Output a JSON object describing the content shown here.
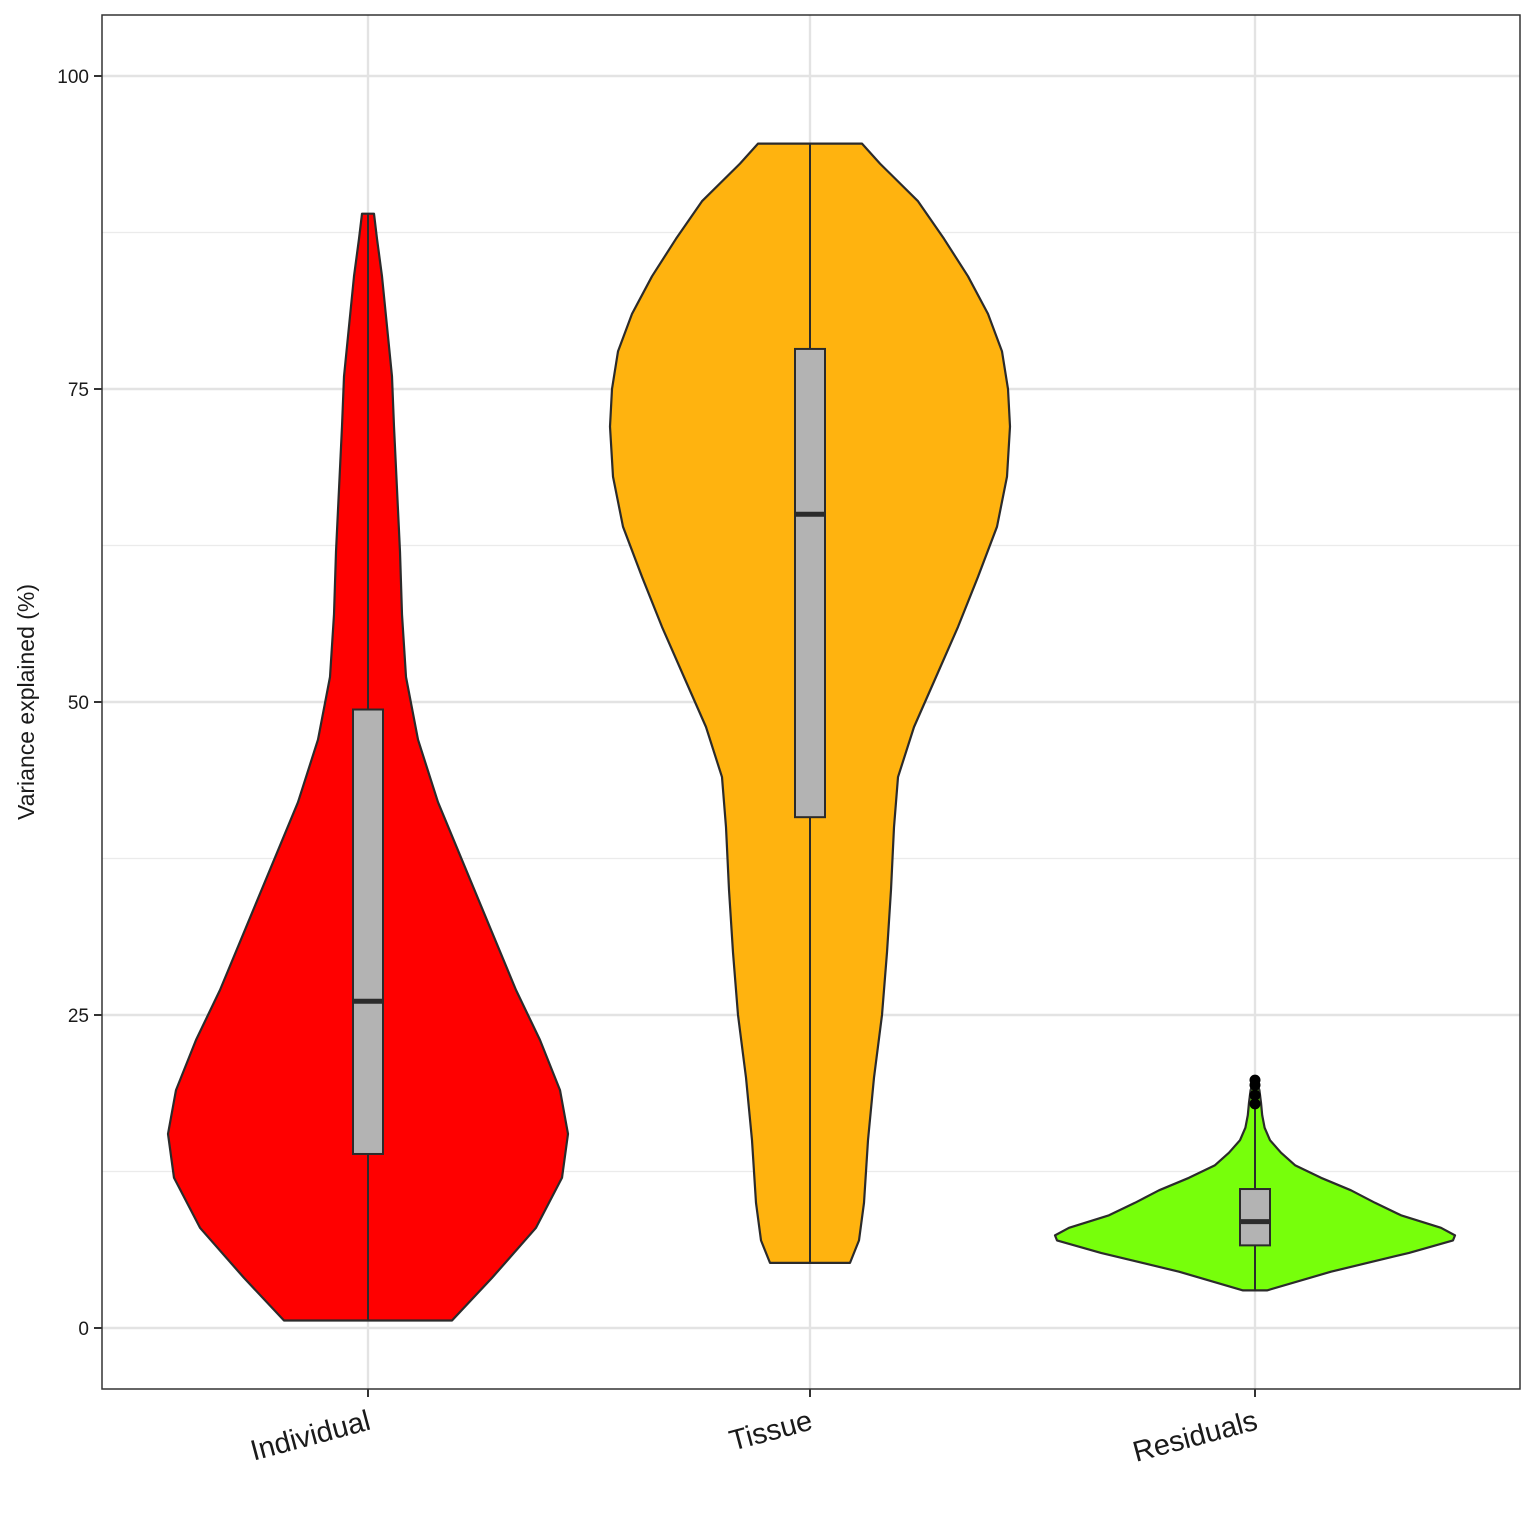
{
  "chart_data": {
    "type": "violin",
    "title": "",
    "xlabel": "",
    "ylabel": "Variance explained (%)",
    "ylim": [
      -4.9,
      104.9
    ],
    "yticks": [
      "0",
      "25",
      "50",
      "75",
      "100"
    ],
    "grid": true,
    "categories": [
      "Individual",
      "Tissue",
      "Residuals"
    ],
    "series": [
      {
        "category": "Individual",
        "fill": "#ff0000",
        "range": [
          0.6,
          89.0
        ],
        "box": {
          "q1": 13.9,
          "median": 26.1,
          "q3": 49.4
        },
        "outliers": [],
        "density": [
          [
            0.6,
            0.42
          ],
          [
            4,
            0.62
          ],
          [
            8,
            0.84
          ],
          [
            12,
            0.97
          ],
          [
            15.5,
            1.0
          ],
          [
            19,
            0.96
          ],
          [
            23,
            0.86
          ],
          [
            27,
            0.74
          ],
          [
            32,
            0.61
          ],
          [
            37,
            0.48
          ],
          [
            42,
            0.35
          ],
          [
            47,
            0.25
          ],
          [
            52,
            0.19
          ],
          [
            57,
            0.17
          ],
          [
            62,
            0.16
          ],
          [
            67,
            0.145
          ],
          [
            72,
            0.13
          ],
          [
            76,
            0.12
          ],
          [
            80,
            0.095
          ],
          [
            84,
            0.07
          ],
          [
            87,
            0.045
          ],
          [
            89,
            0.03
          ]
        ]
      },
      {
        "category": "Tissue",
        "fill": "#ffb30f",
        "range": [
          5.2,
          94.6
        ],
        "box": {
          "q1": 40.8,
          "median": 65.0,
          "q3": 78.2
        },
        "outliers": [],
        "density": [
          [
            5.2,
            0.2
          ],
          [
            7,
            0.245
          ],
          [
            10,
            0.27
          ],
          [
            15,
            0.29
          ],
          [
            20,
            0.32
          ],
          [
            25,
            0.36
          ],
          [
            30,
            0.385
          ],
          [
            35,
            0.405
          ],
          [
            40,
            0.42
          ],
          [
            44,
            0.44
          ],
          [
            48,
            0.52
          ],
          [
            52,
            0.63
          ],
          [
            56,
            0.74
          ],
          [
            60,
            0.84
          ],
          [
            64,
            0.935
          ],
          [
            68,
            0.985
          ],
          [
            72,
            1.0
          ],
          [
            75,
            0.99
          ],
          [
            78,
            0.96
          ],
          [
            81,
            0.89
          ],
          [
            84,
            0.79
          ],
          [
            87,
            0.67
          ],
          [
            90,
            0.54
          ],
          [
            93,
            0.35
          ],
          [
            94.6,
            0.26
          ]
        ]
      },
      {
        "category": "Residuals",
        "fill": "#77ff0b",
        "range": [
          3.0,
          19.8
        ],
        "box": {
          "q1": 6.6,
          "median": 8.5,
          "q3": 11.1
        },
        "outliers": [
          17.9,
          18.6,
          19.4,
          19.8
        ],
        "density": [
          [
            3.0,
            0.06
          ],
          [
            4.5,
            0.38
          ],
          [
            6,
            0.77
          ],
          [
            7,
            0.99
          ],
          [
            7.4,
            1.0
          ],
          [
            8,
            0.93
          ],
          [
            9,
            0.73
          ],
          [
            10,
            0.6
          ],
          [
            11,
            0.48
          ],
          [
            12,
            0.33
          ],
          [
            13,
            0.2
          ],
          [
            14,
            0.13
          ],
          [
            15,
            0.075
          ],
          [
            16,
            0.048
          ],
          [
            17,
            0.036
          ],
          [
            18,
            0.03
          ],
          [
            19,
            0.022
          ],
          [
            19.8,
            0.005
          ]
        ]
      }
    ]
  }
}
